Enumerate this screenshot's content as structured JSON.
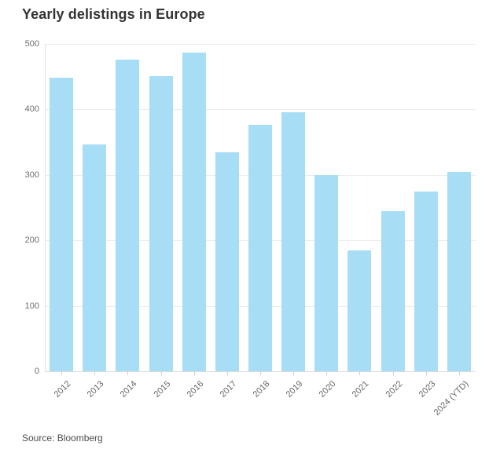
{
  "title": "Yearly delistings in Europe",
  "source_note": "Source: Bloomberg",
  "colors": {
    "bar": "#A7DEF5",
    "title_text": "#333333",
    "axis_text": "#6E6E6E",
    "gridline": "#ECECEC",
    "baseline": "#DCDCDC"
  },
  "chart_data": {
    "type": "bar",
    "title": "Yearly delistings in Europe",
    "source": "Source: Bloomberg",
    "categories": [
      "2012",
      "2013",
      "2014",
      "2015",
      "2016",
      "2017",
      "2018",
      "2019",
      "2020",
      "2021",
      "2022",
      "2023",
      "2024 (YTD)"
    ],
    "values": [
      448,
      347,
      476,
      451,
      487,
      335,
      377,
      396,
      300,
      185,
      245,
      275,
      305
    ],
    "xlabel": "",
    "ylabel": "",
    "ylim": [
      0,
      500
    ],
    "yticks": [
      0,
      100,
      200,
      300,
      400,
      500
    ],
    "grid": true,
    "legend_position": "none",
    "bar_color": "#A7DEF5"
  }
}
